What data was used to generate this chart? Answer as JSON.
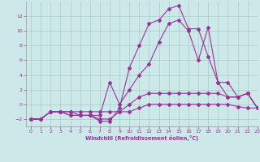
{
  "xlabel": "Windchill (Refroidissement éolien,°C)",
  "bg_color": "#cce8e8",
  "line_color": "#993399",
  "grid_color": "#aacccc",
  "hours": [
    0,
    1,
    2,
    3,
    4,
    5,
    6,
    7,
    8,
    9,
    10,
    11,
    12,
    13,
    14,
    15,
    16,
    17,
    18,
    19,
    20,
    21,
    22,
    23
  ],
  "series": [
    [
      -2,
      -2,
      -1,
      -1,
      -1,
      -1,
      -1,
      -1,
      -1,
      -1,
      -1,
      -0.5,
      0,
      0,
      0,
      0,
      0,
      0,
      0,
      0,
      0,
      -0.3,
      -0.5,
      -0.5
    ],
    [
      -2,
      -2,
      -1,
      -1,
      -1,
      -1.5,
      -1.5,
      -2,
      -2,
      -1,
      0,
      1,
      1.5,
      1.5,
      1.5,
      1.5,
      1.5,
      1.5,
      1.5,
      1.5,
      1,
      1,
      1.5,
      -0.5
    ],
    [
      -2,
      -2,
      -1,
      -1,
      -1.5,
      -1.5,
      -1.5,
      -1.5,
      3,
      0,
      2,
      4,
      5.5,
      8.5,
      11,
      11.5,
      10,
      6,
      10.5,
      3,
      3,
      1,
      1.5,
      -0.5
    ],
    [
      -2,
      -2,
      -1,
      -1,
      -1.5,
      -1.5,
      -1.5,
      -2.3,
      -2.3,
      -0.5,
      5,
      8,
      11,
      11.5,
      13,
      13.5,
      10.3,
      10.3,
      6.5,
      3,
      1,
      1,
      1.5,
      -0.5
    ]
  ],
  "ylim": [
    -3,
    14
  ],
  "yticks": [
    -2,
    0,
    2,
    4,
    6,
    8,
    10,
    12
  ],
  "xlim": [
    -0.5,
    23
  ],
  "xticks": [
    0,
    1,
    2,
    3,
    4,
    5,
    6,
    7,
    8,
    9,
    10,
    11,
    12,
    13,
    14,
    15,
    16,
    17,
    18,
    19,
    20,
    21,
    22,
    23
  ]
}
